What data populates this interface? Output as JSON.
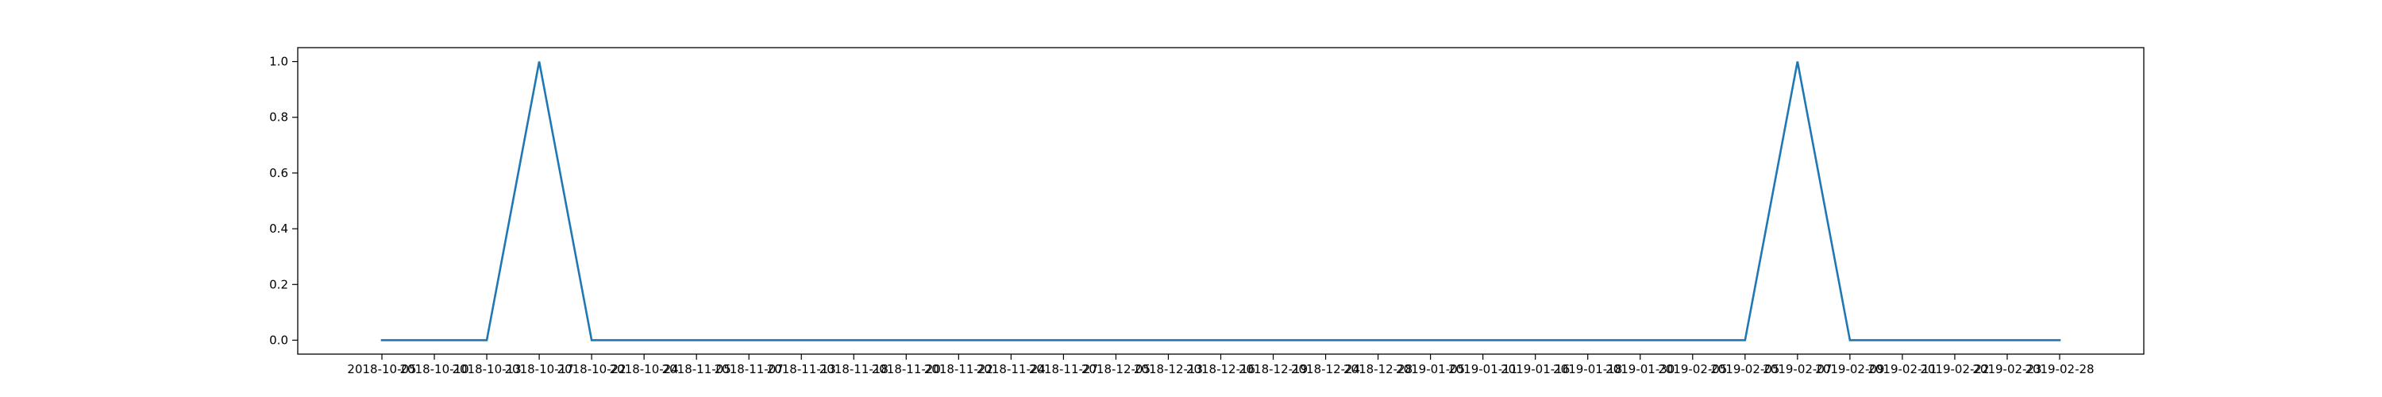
{
  "chart_data": {
    "type": "line",
    "title": "",
    "xlabel": "",
    "ylabel": "",
    "ylim": [
      -0.05,
      1.05
    ],
    "grid": false,
    "y_ticks": [
      "0.0",
      "0.2",
      "0.4",
      "0.6",
      "0.8",
      "1.0"
    ],
    "x_tick_labels": [
      "2018-10-05",
      "2018-10-10",
      "2018-10-13",
      "2018-10-17",
      "2018-10-22",
      "2018-10-24",
      "2018-11-05",
      "2018-11-07",
      "2018-11-13",
      "2018-11-18",
      "2018-11-20",
      "2018-11-22",
      "2018-11-24",
      "2018-11-27",
      "2018-12-05",
      "2018-12-13",
      "2018-12-16",
      "2018-12-19",
      "2018-12-24",
      "2018-12-28",
      "2019-01-05",
      "2019-01-11",
      "2019-01-16",
      "2019-01-18",
      "2019-01-30",
      "2019-02-05",
      "2019-02-05",
      "2019-02-07",
      "2019-02-09",
      "2019-02-11",
      "2019-02-22",
      "2019-02-23",
      "2019-02-28"
    ],
    "series": [
      {
        "color": "#1f77b4",
        "values": [
          0,
          0,
          0,
          1,
          0,
          0,
          0,
          0,
          0,
          0,
          0,
          0,
          0,
          0,
          0,
          0,
          0,
          0,
          0,
          0,
          0,
          0,
          0,
          0,
          0,
          0,
          0,
          1,
          0,
          0,
          0,
          0,
          0
        ]
      }
    ]
  }
}
